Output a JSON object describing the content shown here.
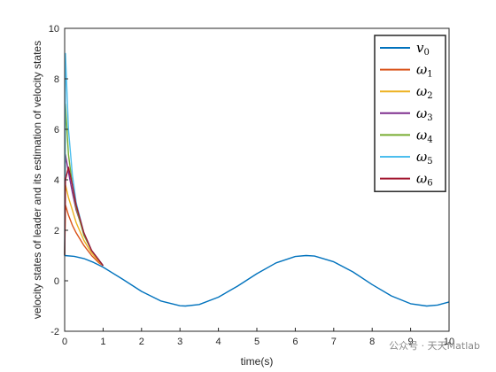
{
  "watermark": "公众号 · 天天Matlab",
  "chart_data": {
    "type": "line",
    "title": "",
    "xlabel": "time(s)",
    "ylabel": "velocity states of leader and its estimation of velocity states",
    "xlim": [
      0,
      10
    ],
    "ylim": [
      -2,
      10
    ],
    "xticks": [
      0,
      1,
      2,
      3,
      4,
      5,
      6,
      7,
      8,
      9,
      10
    ],
    "yticks": [
      -2,
      0,
      2,
      4,
      6,
      8,
      10
    ],
    "grid": false,
    "legend_position": "top-right",
    "series": [
      {
        "name": "v",
        "sub": "0",
        "color": "#0072BD",
        "x": [
          0,
          0.25,
          0.5,
          0.75,
          1.0,
          1.5,
          2.0,
          2.5,
          3.0,
          3.14,
          3.5,
          4.0,
          4.5,
          5.0,
          5.5,
          6.0,
          6.28,
          6.5,
          7.0,
          7.5,
          8.0,
          8.5,
          9.0,
          9.42,
          9.7,
          10.0
        ],
        "y": [
          1.0,
          0.97,
          0.88,
          0.73,
          0.54,
          0.07,
          -0.42,
          -0.8,
          -0.99,
          -1.0,
          -0.94,
          -0.65,
          -0.21,
          0.28,
          0.71,
          0.96,
          1.0,
          0.98,
          0.75,
          0.35,
          -0.15,
          -0.6,
          -0.91,
          -1.0,
          -0.96,
          -0.84
        ]
      },
      {
        "name": "ω",
        "sub": "1",
        "color": "#D95319",
        "x": [
          0,
          0.02,
          0.1,
          0.2,
          0.3,
          0.5,
          0.7,
          0.9,
          1.0
        ],
        "y": [
          1.0,
          3.0,
          2.6,
          2.2,
          1.9,
          1.4,
          1.0,
          0.7,
          0.6
        ]
      },
      {
        "name": "ω",
        "sub": "2",
        "color": "#EDB120",
        "x": [
          0,
          0.02,
          0.1,
          0.2,
          0.3,
          0.5,
          0.7,
          0.9,
          1.0
        ],
        "y": [
          1.0,
          3.8,
          3.3,
          2.8,
          2.3,
          1.6,
          1.1,
          0.75,
          0.6
        ]
      },
      {
        "name": "ω",
        "sub": "3",
        "color": "#7E2F8E",
        "x": [
          0,
          0.02,
          0.1,
          0.2,
          0.3,
          0.5,
          0.7,
          0.9,
          1.0
        ],
        "y": [
          1.0,
          5.0,
          4.3,
          3.5,
          2.8,
          1.9,
          1.2,
          0.8,
          0.6
        ]
      },
      {
        "name": "ω",
        "sub": "4",
        "color": "#77AC30",
        "x": [
          0,
          0.02,
          0.1,
          0.2,
          0.3,
          0.5,
          0.7,
          0.9,
          1.0
        ],
        "y": [
          1.0,
          7.0,
          5.0,
          3.8,
          2.9,
          1.8,
          1.2,
          0.8,
          0.6
        ]
      },
      {
        "name": "ω",
        "sub": "5",
        "color": "#4DBEEE",
        "x": [
          0,
          0.02,
          0.1,
          0.2,
          0.3,
          0.5,
          0.7,
          0.9,
          1.0
        ],
        "y": [
          1.0,
          9.0,
          6.0,
          4.2,
          3.1,
          1.9,
          1.2,
          0.8,
          0.6
        ]
      },
      {
        "name": "ω",
        "sub": "6",
        "color": "#A2142F",
        "x": [
          0,
          0.02,
          0.1,
          0.2,
          0.3,
          0.5,
          0.7,
          0.9,
          1.0
        ],
        "y": [
          1.0,
          4.0,
          4.5,
          3.8,
          3.0,
          1.9,
          1.2,
          0.8,
          0.6
        ]
      }
    ]
  }
}
